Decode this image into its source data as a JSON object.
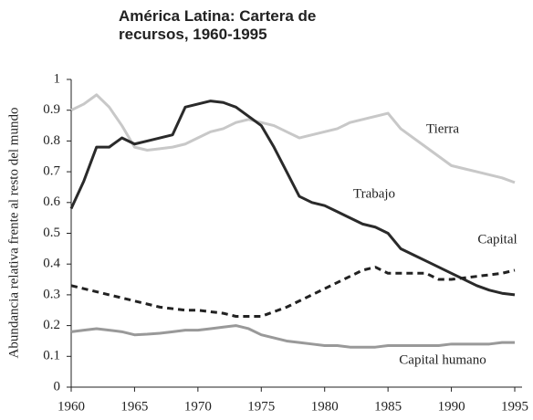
{
  "chart_data": {
    "type": "line",
    "title": "América Latina: Cartera de recursos, 1960-1995",
    "y_label": "Abundancia relativa frente al resto del mundo",
    "x": [
      1960,
      1961,
      1962,
      1963,
      1964,
      1965,
      1966,
      1967,
      1968,
      1969,
      1970,
      1971,
      1972,
      1973,
      1974,
      1975,
      1976,
      1977,
      1978,
      1979,
      1980,
      1981,
      1982,
      1983,
      1984,
      1985,
      1986,
      1987,
      1988,
      1989,
      1990,
      1991,
      1992,
      1993,
      1994,
      1995
    ],
    "series": [
      {
        "name": "Tierra",
        "color": "#c8c8c8",
        "dash": false,
        "values": [
          0.9,
          0.92,
          0.95,
          0.91,
          0.85,
          0.78,
          0.77,
          0.775,
          0.78,
          0.79,
          0.81,
          0.83,
          0.84,
          0.86,
          0.87,
          0.86,
          0.85,
          0.83,
          0.81,
          0.82,
          0.83,
          0.84,
          0.86,
          0.87,
          0.88,
          0.89,
          0.84,
          0.81,
          0.78,
          0.75,
          0.72,
          0.71,
          0.7,
          0.69,
          0.68,
          0.665
        ]
      },
      {
        "name": "Trabajo",
        "color": "#2a2a2a",
        "dash": false,
        "values": [
          0.58,
          0.67,
          0.78,
          0.78,
          0.81,
          0.79,
          0.8,
          0.81,
          0.82,
          0.91,
          0.92,
          0.93,
          0.925,
          0.91,
          0.88,
          0.85,
          0.78,
          0.7,
          0.62,
          0.6,
          0.59,
          0.57,
          0.55,
          0.53,
          0.52,
          0.5,
          0.45,
          0.43,
          0.41,
          0.39,
          0.37,
          0.35,
          0.33,
          0.315,
          0.305,
          0.3
        ]
      },
      {
        "name": "Capital",
        "color": "#222222",
        "dash": true,
        "values": [
          0.33,
          0.32,
          0.31,
          0.3,
          0.29,
          0.28,
          0.27,
          0.26,
          0.255,
          0.25,
          0.25,
          0.245,
          0.24,
          0.23,
          0.23,
          0.23,
          0.245,
          0.26,
          0.28,
          0.3,
          0.32,
          0.34,
          0.36,
          0.38,
          0.39,
          0.37,
          0.37,
          0.37,
          0.37,
          0.35,
          0.35,
          0.355,
          0.36,
          0.365,
          0.37,
          0.38
        ]
      },
      {
        "name": "Capital humano",
        "color": "#999999",
        "dash": false,
        "values": [
          0.18,
          0.185,
          0.19,
          0.185,
          0.18,
          0.17,
          0.172,
          0.175,
          0.18,
          0.185,
          0.185,
          0.19,
          0.195,
          0.2,
          0.19,
          0.17,
          0.16,
          0.15,
          0.145,
          0.14,
          0.135,
          0.135,
          0.13,
          0.13,
          0.13,
          0.135,
          0.135,
          0.135,
          0.135,
          0.135,
          0.14,
          0.14,
          0.14,
          0.14,
          0.145,
          0.145
        ]
      }
    ],
    "xlim": [
      1960,
      1995
    ],
    "ylim": [
      0,
      1
    ],
    "xticks": [
      1960,
      1965,
      1970,
      1975,
      1980,
      1985,
      1990,
      1995
    ],
    "yticks": [
      0,
      0.1,
      0.2,
      0.3,
      0.4,
      0.5,
      0.6,
      0.7,
      0.8,
      0.9,
      1
    ],
    "grid": false
  }
}
